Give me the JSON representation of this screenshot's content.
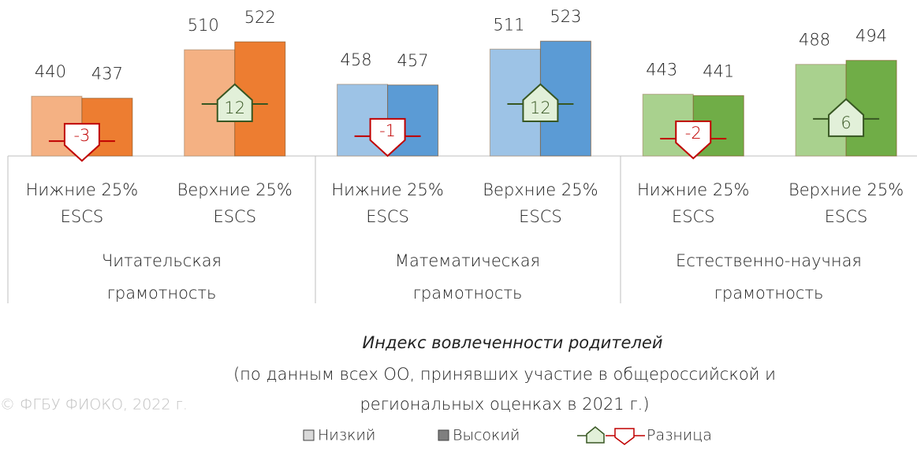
{
  "chart_data": {
    "type": "bar",
    "title": "Индекс вовлеченности родителей",
    "subtitle": [
      "(по данным всех ОО, принявших участие в общероссийской и",
      "региональных оценках в 2021 г.)"
    ],
    "watermark": "© ФГБУ ФИОКО, 2022 г.",
    "groups": [
      [
        "Читательская",
        "грамотность"
      ],
      [
        "Математическая",
        "грамотность"
      ],
      [
        "Естественно-научная",
        "грамотность"
      ]
    ],
    "categories": [
      [
        "Нижние 25%",
        "ESCS"
      ],
      [
        "Верхние 25%",
        "ESCS"
      ],
      [
        "Нижние 25%",
        "ESCS"
      ],
      [
        "Верхние 25%",
        "ESCS"
      ],
      [
        "Нижние 25%",
        "ESCS"
      ],
      [
        "Верхние 25%",
        "ESCS"
      ]
    ],
    "series": [
      {
        "name": "Низкий",
        "color": "#d9d9d9",
        "colors": [
          "#f4b183",
          "#f4b183",
          "#9dc3e6",
          "#9dc3e6",
          "#a9d18e",
          "#a9d18e"
        ],
        "values": [
          440,
          510,
          458,
          511,
          443,
          488
        ]
      },
      {
        "name": "Высокий",
        "color": "#7f7f7f",
        "colors": [
          "#ed7d31",
          "#ed7d31",
          "#5b9bd5",
          "#5b9bd5",
          "#70ad47",
          "#70ad47"
        ],
        "values": [
          437,
          522,
          457,
          523,
          441,
          494
        ]
      },
      {
        "name": "Разница",
        "axis": "y2",
        "colors": {
          "positive": "#e2f0d9",
          "positive_stroke": "#385723",
          "negative": "#ffffff",
          "negative_stroke": "#c00000"
        },
        "values": [
          -3,
          12,
          -1,
          12,
          -2,
          6
        ]
      }
    ],
    "ylim": [
      350,
      585
    ],
    "y2lim": [
      -9,
      54
    ]
  }
}
